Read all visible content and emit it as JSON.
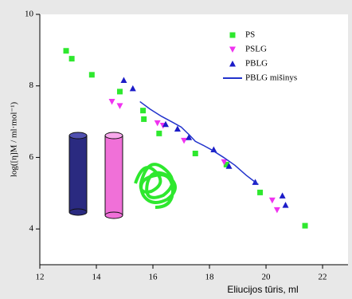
{
  "chart_data": {
    "type": "scatter",
    "x_label": "Eliucijos tūris, ml",
    "y_label": "log([η]M / ml·mol⁻¹)",
    "xlim": [
      12,
      22.9
    ],
    "ylim": [
      3,
      10
    ],
    "xticks": [
      12,
      14,
      16,
      18,
      20,
      22
    ],
    "yticks": [
      4,
      6,
      8,
      10
    ],
    "legend": "upper right",
    "series": [
      {
        "name": "PS",
        "color": "#2ee82e",
        "marker": "square",
        "x": [
          12.93,
          13.13,
          13.84,
          14.83,
          15.65,
          15.68,
          16.22,
          17.5,
          18.6,
          19.79,
          21.38
        ],
        "values": [
          8.98,
          8.76,
          8.31,
          7.84,
          7.31,
          7.07,
          6.67,
          6.11,
          5.8,
          5.02,
          4.09
        ]
      },
      {
        "name": "PSLG",
        "color": "#f032f0",
        "marker": "triangle-down",
        "x": [
          14.55,
          14.83,
          16.16,
          16.36,
          17.1,
          18.52,
          20.22,
          20.39
        ],
        "values": [
          7.56,
          7.44,
          6.96,
          6.89,
          6.47,
          5.87,
          4.8,
          4.53
        ]
      },
      {
        "name": "PBLG",
        "color": "#1c1cc8",
        "marker": "triangle-up",
        "x": [
          14.97,
          15.29,
          16.45,
          16.87,
          17.27,
          18.15,
          18.69,
          19.62,
          20.58,
          20.69
        ],
        "values": [
          8.16,
          7.93,
          6.93,
          6.8,
          6.56,
          6.22,
          5.76,
          5.31,
          4.93,
          4.67
        ]
      },
      {
        "name": "PBLG mišinys",
        "color": "#2233cc",
        "marker": "line",
        "x": [
          15.54,
          15.9,
          16.3,
          16.7,
          17.0,
          17.3,
          17.5,
          17.8,
          18.1,
          18.5,
          18.9,
          19.3,
          19.73
        ],
        "values": [
          7.56,
          7.35,
          7.15,
          6.98,
          6.85,
          6.62,
          6.45,
          6.33,
          6.2,
          6.0,
          5.78,
          5.5,
          5.24
        ]
      }
    ]
  }
}
